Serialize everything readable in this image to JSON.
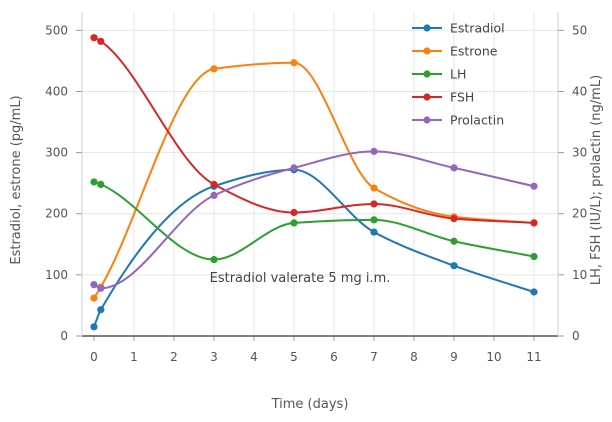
{
  "chart_data": {
    "type": "line",
    "title": "",
    "xlabel": "Time (days)",
    "ylabel_left": "Estradiol, estrone (pg/mL)",
    "ylabel_right": "LH, FSH (IU/L); prolactin (ng/mL)",
    "xlim": [
      -0.3,
      11.6
    ],
    "ylim_left": [
      0,
      530
    ],
    "ylim_right": [
      0,
      53
    ],
    "x_ticks": [
      0,
      1,
      2,
      3,
      4,
      5,
      6,
      7,
      8,
      9,
      10,
      11
    ],
    "y_ticks_left": [
      0,
      100,
      200,
      300,
      400,
      500
    ],
    "y_ticks_right": [
      0,
      10,
      20,
      30,
      40,
      50
    ],
    "grid": true,
    "legend_position": "top-right",
    "annotation": "Estradiol valerate 5 mg i.m.",
    "series": [
      {
        "name": "Estradiol",
        "axis": "left",
        "color": "#1f77b4",
        "x": [
          0,
          0.17,
          3,
          5,
          7,
          9,
          11
        ],
        "y": [
          15,
          43,
          245,
          272,
          170,
          115,
          72
        ]
      },
      {
        "name": "Estrone",
        "axis": "left",
        "color": "#ff7f0e",
        "x": [
          0,
          0.17,
          3,
          5,
          7,
          9,
          11
        ],
        "y": [
          62,
          80,
          437,
          447,
          242,
          195,
          185
        ]
      },
      {
        "name": "LH",
        "axis": "right",
        "color": "#2ca02c",
        "x": [
          0,
          0.17,
          3,
          5,
          7,
          9,
          11
        ],
        "y": [
          25.2,
          24.8,
          12.5,
          18.5,
          19.0,
          15.5,
          13.0
        ]
      },
      {
        "name": "FSH",
        "axis": "right",
        "color": "#d62728",
        "x": [
          0,
          0.17,
          3,
          5,
          7,
          9,
          11
        ],
        "y": [
          48.8,
          48.2,
          24.8,
          20.2,
          21.6,
          19.2,
          18.5
        ]
      },
      {
        "name": "Prolactin",
        "axis": "right",
        "color": "#9467bd",
        "x": [
          0,
          0.17,
          3,
          5,
          7,
          9,
          11
        ],
        "y": [
          8.4,
          7.8,
          23.0,
          27.5,
          30.2,
          27.5,
          24.5
        ]
      }
    ]
  }
}
